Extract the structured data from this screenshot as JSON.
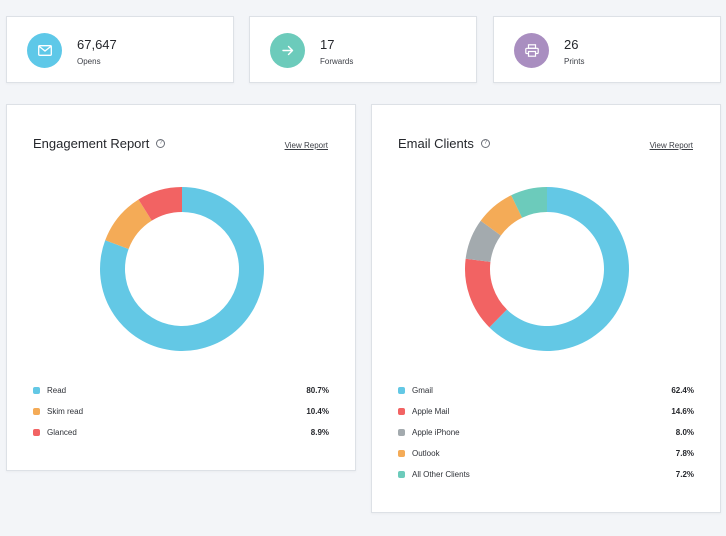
{
  "stats": [
    {
      "value": "67,647",
      "label": "Opens",
      "icon": "mail-icon",
      "color": "#5ec8e8"
    },
    {
      "value": "17",
      "label": "Forwards",
      "icon": "arrow-right-icon",
      "color": "#6ccbbb"
    },
    {
      "value": "26",
      "label": "Prints",
      "icon": "printer-icon",
      "color": "#a98ec0"
    }
  ],
  "engagement": {
    "title": "Engagement Report",
    "view_link": "View Report",
    "chart_data": {
      "type": "pie",
      "categories": [
        "Read",
        "Skim read",
        "Glanced"
      ],
      "values": [
        80.7,
        10.4,
        8.9
      ],
      "colors": [
        "#63c8e5",
        "#f4ab57",
        "#f26363"
      ],
      "labels": [
        "80.7%",
        "10.4%",
        "8.9%"
      ]
    }
  },
  "clients": {
    "title": "Email Clients",
    "view_link": "View Report",
    "chart_data": {
      "type": "pie",
      "categories": [
        "Gmail",
        "Apple Mail",
        "Apple iPhone",
        "Outlook",
        "All Other Clients"
      ],
      "values": [
        62.4,
        14.6,
        8.0,
        7.8,
        7.2
      ],
      "colors": [
        "#63c8e5",
        "#f26363",
        "#a3aaae",
        "#f4ab57",
        "#6ccbbb"
      ],
      "labels": [
        "62.4%",
        "14.6%",
        "8.0%",
        "7.8%",
        "7.2%"
      ]
    }
  }
}
